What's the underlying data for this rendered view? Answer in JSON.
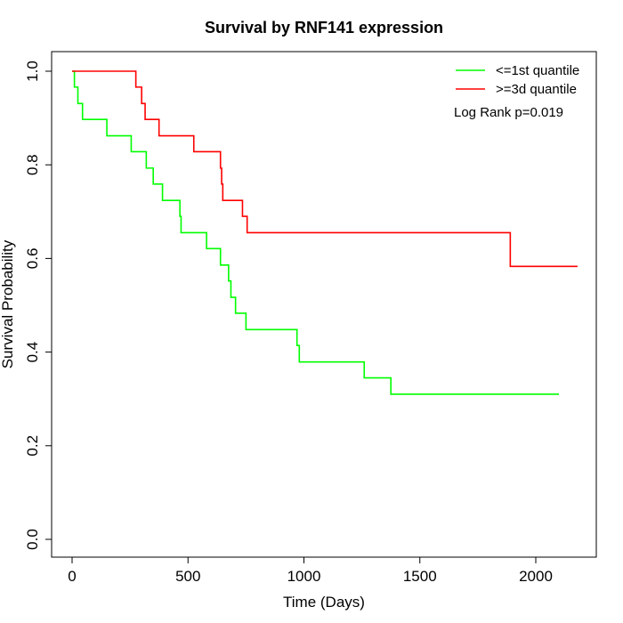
{
  "chart_data": {
    "type": "line",
    "title": "Survival by RNF141 expression",
    "xlabel": "Time (Days)",
    "ylabel": "Survival Probability",
    "xlim": [
      0,
      2180
    ],
    "ylim": [
      0,
      1.0
    ],
    "x_ticks": [
      0,
      500,
      1000,
      1500,
      2000
    ],
    "y_ticks": [
      0.0,
      0.2,
      0.4,
      0.6,
      0.8,
      1.0
    ],
    "x_tick_labels": [
      "0",
      "500",
      "1000",
      "1500",
      "2000"
    ],
    "y_tick_labels": [
      "0.0",
      "0.2",
      "0.4",
      "0.6",
      "0.8",
      "1.0"
    ],
    "grid": false,
    "legend_position": "top-right",
    "annotation": "Log Rank p=0.019",
    "series": [
      {
        "name": "<=1st quantile",
        "color": "#00ff00",
        "steps": [
          [
            0,
            1.0
          ],
          [
            10,
            0.966
          ],
          [
            25,
            0.931
          ],
          [
            45,
            0.897
          ],
          [
            150,
            0.862
          ],
          [
            255,
            0.828
          ],
          [
            320,
            0.793
          ],
          [
            350,
            0.759
          ],
          [
            390,
            0.724
          ],
          [
            465,
            0.69
          ],
          [
            470,
            0.655
          ],
          [
            580,
            0.621
          ],
          [
            640,
            0.586
          ],
          [
            675,
            0.552
          ],
          [
            685,
            0.517
          ],
          [
            705,
            0.483
          ],
          [
            750,
            0.448
          ],
          [
            970,
            0.414
          ],
          [
            980,
            0.379
          ],
          [
            1260,
            0.345
          ],
          [
            1375,
            0.31
          ]
        ],
        "end_x": 2100
      },
      {
        "name": ">=3d quantile",
        "color": "#ff0000",
        "steps": [
          [
            0,
            1.0
          ],
          [
            275,
            0.966
          ],
          [
            300,
            0.931
          ],
          [
            315,
            0.897
          ],
          [
            375,
            0.862
          ],
          [
            525,
            0.828
          ],
          [
            640,
            0.793
          ],
          [
            645,
            0.759
          ],
          [
            650,
            0.724
          ],
          [
            735,
            0.69
          ],
          [
            755,
            0.655
          ],
          [
            1890,
            0.583
          ]
        ],
        "end_x": 2180
      }
    ]
  }
}
